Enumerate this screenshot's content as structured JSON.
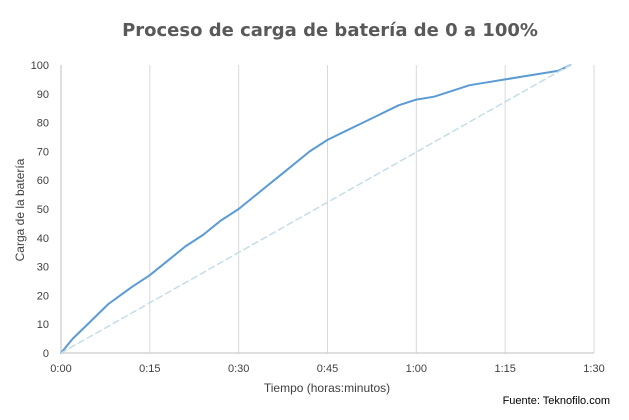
{
  "chart_data": {
    "type": "line",
    "title": "Proceso de carga de batería de 0 a 100%",
    "xlabel": "Tiempo (horas:minutos)",
    "ylabel": "Carga de la batería",
    "xlim": [
      "0:00",
      "1:30"
    ],
    "ylim": [
      0,
      100
    ],
    "x_ticks": [
      "0:00",
      "0:15",
      "0:30",
      "0:45",
      "1:00",
      "1:15",
      "1:30"
    ],
    "y_ticks": [
      "0",
      "10",
      "20",
      "30",
      "40",
      "50",
      "60",
      "70",
      "80",
      "90",
      "100"
    ],
    "grid": {
      "vertical": true,
      "horizontal": false
    },
    "legend": "none",
    "series": [
      {
        "x": [
          "0:00",
          "0:02",
          "0:04",
          "0:06",
          "0:08",
          "0:10",
          "0:12",
          "0:15",
          "0:18",
          "0:21",
          "0:24",
          "0:27",
          "0:30",
          "0:33",
          "0:36",
          "0:39",
          "0:42",
          "0:45",
          "0:48",
          "0:51",
          "0:54",
          "0:57",
          "1:00",
          "1:03",
          "1:06",
          "1:09",
          "1:12",
          "1:15",
          "1:18",
          "1:21",
          "1:24",
          "1:26"
        ],
        "values": [
          0,
          5,
          9,
          13,
          17,
          20,
          23,
          27,
          32,
          37,
          41,
          46,
          50,
          55,
          60,
          65,
          70,
          74,
          77,
          80,
          83,
          86,
          88,
          89,
          91,
          93,
          94,
          95,
          96,
          97,
          98,
          100
        ],
        "color": "#5b9bd5",
        "style": "solid"
      },
      {
        "x": [
          "0:00",
          "1:26"
        ],
        "values": [
          0,
          100
        ],
        "color": "#c5dde8",
        "style": "dashed"
      }
    ],
    "source_note": "Fuente: Teknofilo.com"
  }
}
